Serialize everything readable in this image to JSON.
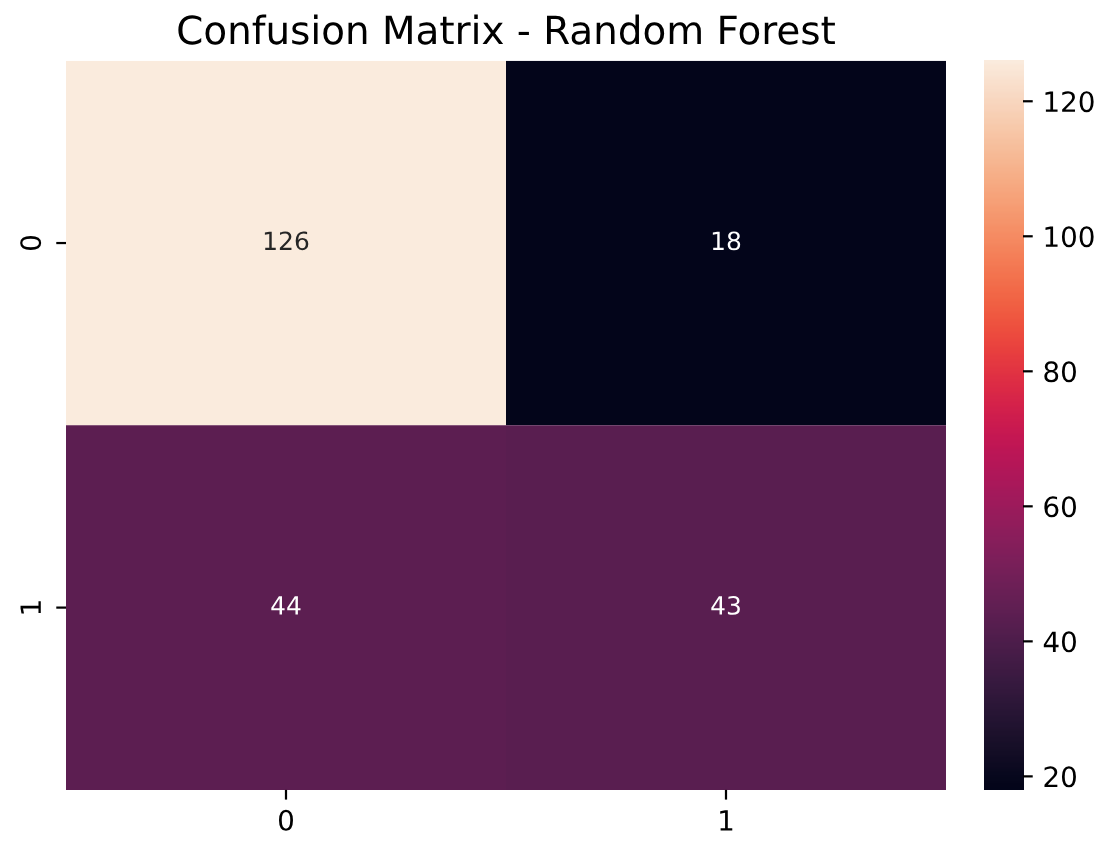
{
  "chart_data": {
    "type": "heatmap",
    "title": "Confusion Matrix - Random Forest",
    "categories": [
      "0",
      "1"
    ],
    "y_categories": [
      "0",
      "1"
    ],
    "cells": [
      [
        126,
        18
      ],
      [
        44,
        43
      ]
    ],
    "clim": [
      18,
      126
    ],
    "cticks": [
      20,
      40,
      60,
      80,
      100,
      120
    ],
    "data_labels": true
  }
}
